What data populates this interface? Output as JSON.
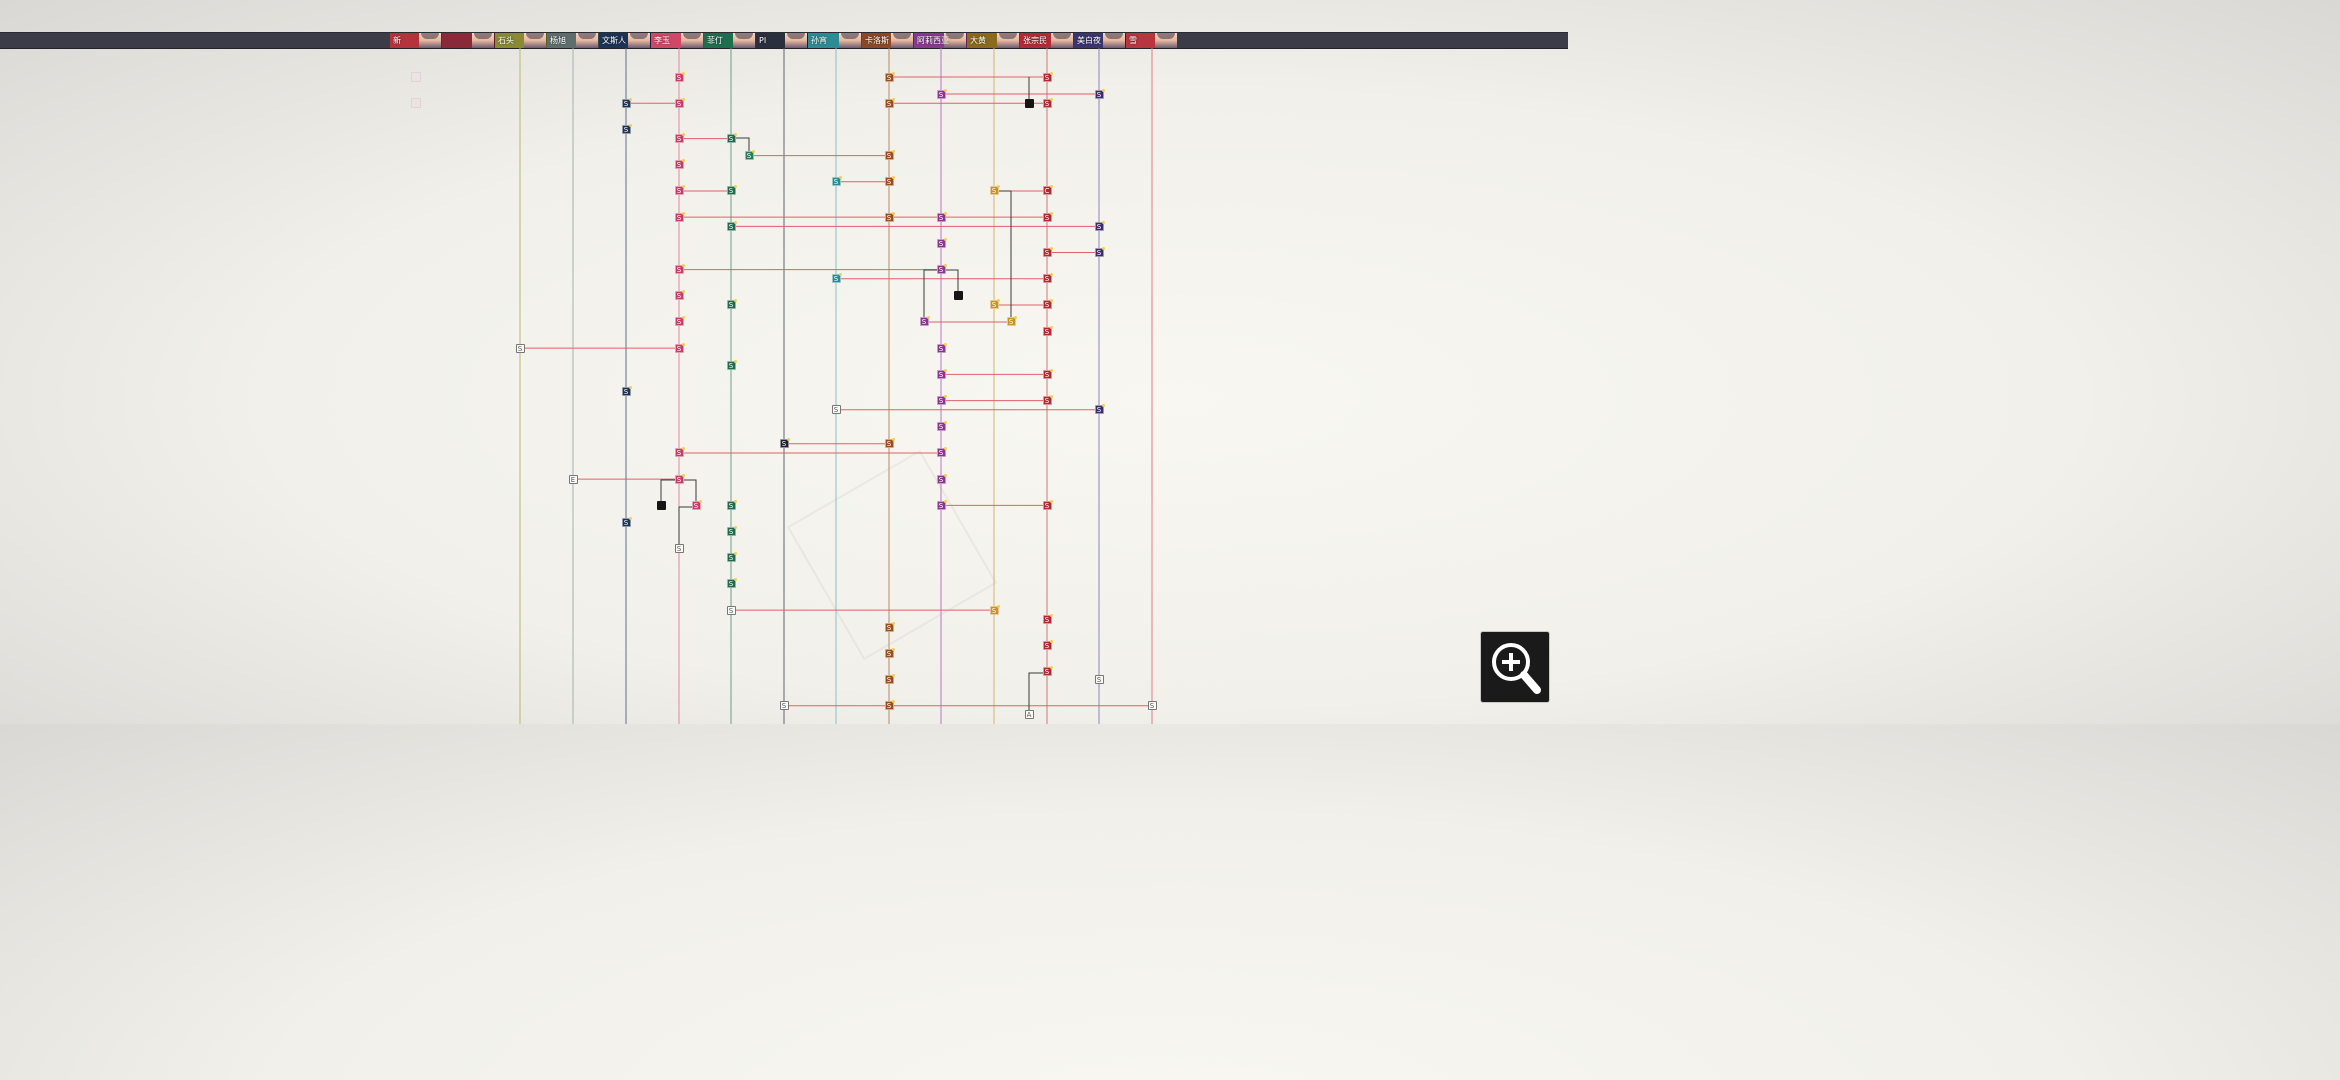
{
  "app": {
    "zoom_button": "zoom-in-icon"
  },
  "tabs": [
    {
      "id": "c0",
      "label": "新",
      "color": "#b4343e"
    },
    {
      "id": "c1",
      "label": "",
      "color": "#8a2a38"
    },
    {
      "id": "c2",
      "label": "石头",
      "color": "#8a8a34"
    },
    {
      "id": "c3",
      "label": "杨旭",
      "color": "#5f6e6c"
    },
    {
      "id": "c4",
      "label": "文斯人",
      "color": "#1c3456"
    },
    {
      "id": "c5",
      "label": "李玉",
      "color": "#d04868"
    },
    {
      "id": "c6",
      "label": "菲仃",
      "color": "#1f6e4e"
    },
    {
      "id": "c7",
      "label": "PI",
      "color": "#2a2f3e"
    },
    {
      "id": "c8",
      "label": "孙宵",
      "color": "#2d8b95"
    },
    {
      "id": "c9",
      "label": "卡洛斯",
      "color": "#8a4a2a"
    },
    {
      "id": "c10",
      "label": "阿莉西亚",
      "color": "#8a3a8e"
    },
    {
      "id": "c11",
      "label": "大黄",
      "color": "#8a6a1e"
    },
    {
      "id": "c12",
      "label": "张宗民",
      "color": "#b42a38"
    },
    {
      "id": "c13",
      "label": "美白夜",
      "color": "#3c3570"
    },
    {
      "id": "c14",
      "label": "雪",
      "color": "#b8343e"
    }
  ],
  "columns": [
    {
      "id": "c2",
      "color": "#b8b870"
    },
    {
      "id": "c3",
      "color": "#a2b2b0"
    },
    {
      "id": "c4",
      "color": "#5c6f8a"
    },
    {
      "id": "c5",
      "color": "#e2889c"
    },
    {
      "id": "c6",
      "color": "#6e9e88"
    },
    {
      "id": "c7",
      "color": "#5e6472"
    },
    {
      "id": "c8",
      "color": "#8cc0c4"
    },
    {
      "id": "c9",
      "color": "#b88a64"
    },
    {
      "id": "c10",
      "color": "#b878bc"
    },
    {
      "id": "c11",
      "color": "#d4b46e"
    },
    {
      "id": "c12",
      "color": "#d07680"
    },
    {
      "id": "c13",
      "color": "#8c88b4"
    },
    {
      "id": "c14",
      "color": "#e27c84"
    }
  ],
  "node_colors": {
    "c4": "#1d3552",
    "c5": "#c83c6a",
    "c6": "#1f6b4e",
    "c7": "#1c2230",
    "c8": "#2c8a95",
    "c9": "#9a4e1c",
    "c10": "#8c3490",
    "c11": "#c89420",
    "c12": "#b02a34",
    "c13": "#3a2e6e"
  },
  "nodes": [
    {
      "col": "c5",
      "step": 0,
      "label": "S"
    },
    {
      "col": "c9",
      "step": 0,
      "label": "S"
    },
    {
      "col": "c12",
      "step": 0,
      "label": "S"
    },
    {
      "col": "c10",
      "step": 0.65,
      "label": "S"
    },
    {
      "col": "c13",
      "step": 0.65,
      "label": "S"
    },
    {
      "col": "c4",
      "step": 1,
      "label": "S"
    },
    {
      "col": "c5",
      "step": 1,
      "label": "S"
    },
    {
      "col": "c9",
      "step": 1,
      "label": "S"
    },
    {
      "col": "x1029",
      "step": 1,
      "label": "",
      "kind": "black"
    },
    {
      "col": "c12",
      "step": 1,
      "label": "S"
    },
    {
      "col": "c4",
      "step": 2,
      "label": "S"
    },
    {
      "col": "c5",
      "step": 2.35,
      "label": "S"
    },
    {
      "col": "c6",
      "step": 2.35,
      "label": "S"
    },
    {
      "col": "x748",
      "step": 3,
      "label": "S",
      "color": "#2a7a5e"
    },
    {
      "col": "c9",
      "step": 3,
      "label": "S"
    },
    {
      "col": "c5",
      "step": 3.35,
      "label": "S"
    },
    {
      "col": "c8",
      "step": 4,
      "label": "S"
    },
    {
      "col": "c9",
      "step": 4,
      "label": "S"
    },
    {
      "col": "c5",
      "step": 4.35,
      "label": "S"
    },
    {
      "col": "c6",
      "step": 4.35,
      "label": "S"
    },
    {
      "col": "c11",
      "step": 4.35,
      "label": "S"
    },
    {
      "col": "c12",
      "step": 4.35,
      "label": "C"
    },
    {
      "col": "c5",
      "step": 5.35,
      "label": "S"
    },
    {
      "col": "c9",
      "step": 5.35,
      "label": "S"
    },
    {
      "col": "c10",
      "step": 5.35,
      "label": "S"
    },
    {
      "col": "c12",
      "step": 5.35,
      "label": "S"
    },
    {
      "col": "c6",
      "step": 5.7,
      "label": "S"
    },
    {
      "col": "c13",
      "step": 5.7,
      "label": "S"
    },
    {
      "col": "c10",
      "step": 6.35,
      "label": "S"
    },
    {
      "col": "c12",
      "step": 6.7,
      "label": "S"
    },
    {
      "col": "c13",
      "step": 6.7,
      "label": "S"
    },
    {
      "col": "c5",
      "step": 7.35,
      "label": "S"
    },
    {
      "col": "c10",
      "step": 7.35,
      "label": "S"
    },
    {
      "col": "c8",
      "step": 7.7,
      "label": "S"
    },
    {
      "col": "c12",
      "step": 7.7,
      "label": "S"
    },
    {
      "col": "x958",
      "step": 8.35,
      "label": "",
      "kind": "black"
    },
    {
      "col": "c5",
      "step": 8.35,
      "label": "S"
    },
    {
      "col": "c6",
      "step": 8.7,
      "label": "S"
    },
    {
      "col": "c11",
      "step": 8.7,
      "label": "S"
    },
    {
      "col": "c12",
      "step": 8.7,
      "label": "S"
    },
    {
      "col": "x924",
      "step": 9.35,
      "label": "S",
      "color": "#8c3490"
    },
    {
      "col": "x1011",
      "step": 9.35,
      "label": "S",
      "color": "#c89420"
    },
    {
      "col": "c5",
      "step": 9.35,
      "label": "S"
    },
    {
      "col": "c12",
      "step": 9.7,
      "label": "S"
    },
    {
      "col": "c2",
      "step": 10.35,
      "label": "S",
      "kind": "white"
    },
    {
      "col": "c5",
      "step": 10.35,
      "label": "S"
    },
    {
      "col": "c10",
      "step": 10.35,
      "label": "S"
    },
    {
      "col": "c6",
      "step": 11,
      "label": "S"
    },
    {
      "col": "c10",
      "step": 11.35,
      "label": "S"
    },
    {
      "col": "c12",
      "step": 11.35,
      "label": "S"
    },
    {
      "col": "c4",
      "step": 12,
      "label": "S"
    },
    {
      "col": "c10",
      "step": 12.35,
      "label": "S"
    },
    {
      "col": "c12",
      "step": 12.35,
      "label": "S"
    },
    {
      "col": "c8",
      "step": 12.7,
      "label": "S",
      "kind": "white"
    },
    {
      "col": "c13",
      "step": 12.7,
      "label": "S"
    },
    {
      "col": "c10",
      "step": 13.35,
      "label": "S"
    },
    {
      "col": "c7",
      "step": 14,
      "label": "S"
    },
    {
      "col": "c9",
      "step": 14,
      "label": "S"
    },
    {
      "col": "c5",
      "step": 14.35,
      "label": "S"
    },
    {
      "col": "c10",
      "step": 14.35,
      "label": "S"
    },
    {
      "col": "c3",
      "step": 15.35,
      "label": "E",
      "kind": "white"
    },
    {
      "col": "c5",
      "step": 15.35,
      "label": "S"
    },
    {
      "col": "c10",
      "step": 15.35,
      "label": "S"
    },
    {
      "col": "x661",
      "step": 16.35,
      "label": "",
      "kind": "black"
    },
    {
      "col": "x696",
      "step": 16.35,
      "label": "S",
      "color": "#c83c6a"
    },
    {
      "col": "c6",
      "step": 16.35,
      "label": "S"
    },
    {
      "col": "c10",
      "step": 16.35,
      "label": "S"
    },
    {
      "col": "c12",
      "step": 16.35,
      "label": "S"
    },
    {
      "col": "c4",
      "step": 17,
      "label": "S"
    },
    {
      "col": "c6",
      "step": 17.35,
      "label": "S"
    },
    {
      "col": "c5",
      "step": 18,
      "label": "S",
      "kind": "white"
    },
    {
      "col": "c6",
      "step": 18.35,
      "label": "S"
    },
    {
      "col": "c6",
      "step": 19.35,
      "label": "S"
    },
    {
      "col": "c6",
      "step": 20.35,
      "label": "S",
      "kind": "white"
    },
    {
      "col": "c11",
      "step": 20.35,
      "label": "S"
    },
    {
      "col": "c12",
      "step": 20.7,
      "label": "S"
    },
    {
      "col": "c9",
      "step": 21,
      "label": "S"
    },
    {
      "col": "c12",
      "step": 21.7,
      "label": "S"
    },
    {
      "col": "c9",
      "step": 22,
      "label": "S"
    },
    {
      "col": "c12",
      "step": 22.7,
      "label": "S"
    },
    {
      "col": "c9",
      "step": 23,
      "label": "S"
    },
    {
      "col": "c13",
      "step": 23,
      "label": "S",
      "kind": "white"
    },
    {
      "col": "c7",
      "step": 24,
      "label": "S",
      "kind": "white"
    },
    {
      "col": "c9",
      "step": 24,
      "label": "S"
    },
    {
      "col": "c14",
      "step": 24,
      "label": "S",
      "kind": "white"
    },
    {
      "col": "x1029",
      "step": 24.35,
      "label": "A",
      "kind": "white"
    }
  ],
  "links": [
    {
      "from": [
        "c9",
        0
      ],
      "to": [
        "c12",
        0
      ]
    },
    {
      "from": [
        "c10",
        0.65
      ],
      "to": [
        "c13",
        0.65
      ]
    },
    {
      "from": [
        "c4",
        1
      ],
      "to": [
        "c5",
        1
      ]
    },
    {
      "from": [
        "c9",
        1
      ],
      "to": [
        "c12",
        1
      ]
    },
    {
      "from": [
        "c5",
        2.35
      ],
      "to": [
        "c6",
        2.35
      ]
    },
    {
      "from": [
        "x748",
        3
      ],
      "to": [
        "c9",
        3
      ]
    },
    {
      "from": [
        "c8",
        4
      ],
      "to": [
        "c9",
        4
      ]
    },
    {
      "from": [
        "c5",
        4.35
      ],
      "to": [
        "c6",
        4.35
      ]
    },
    {
      "from": [
        "c11",
        4.35
      ],
      "to": [
        "c12",
        4.35
      ]
    },
    {
      "from": [
        "c5",
        5.35
      ],
      "to": [
        "c12",
        5.35
      ]
    },
    {
      "from": [
        "c6",
        5.7
      ],
      "to": [
        "c13",
        5.7
      ]
    },
    {
      "from": [
        "c12",
        6.7
      ],
      "to": [
        "c13",
        6.7
      ]
    },
    {
      "from": [
        "c5",
        7.35
      ],
      "to": [
        "c10",
        7.35
      ]
    },
    {
      "from": [
        "c8",
        7.7
      ],
      "to": [
        "c12",
        7.7
      ]
    },
    {
      "from": [
        "c11",
        8.7
      ],
      "to": [
        "c12",
        8.7
      ]
    },
    {
      "from": [
        "x924",
        9.35
      ],
      "to": [
        "x1011",
        9.35
      ]
    },
    {
      "from": [
        "c2",
        10.35
      ],
      "to": [
        "c5",
        10.35
      ]
    },
    {
      "from": [
        "c10",
        11.35
      ],
      "to": [
        "c12",
        11.35
      ]
    },
    {
      "from": [
        "c10",
        12.35
      ],
      "to": [
        "c12",
        12.35
      ]
    },
    {
      "from": [
        "c8",
        12.7
      ],
      "to": [
        "c13",
        12.7
      ]
    },
    {
      "from": [
        "c7",
        14
      ],
      "to": [
        "c9",
        14
      ]
    },
    {
      "from": [
        "c5",
        14.35
      ],
      "to": [
        "c10",
        14.35
      ]
    },
    {
      "from": [
        "c3",
        15.35
      ],
      "to": [
        "c5",
        15.35
      ]
    },
    {
      "from": [
        "c10",
        16.35
      ],
      "to": [
        "c12",
        16.35
      ]
    },
    {
      "from": [
        "c6",
        20.35
      ],
      "to": [
        "c11",
        20.35
      ]
    },
    {
      "from": [
        "c7",
        24
      ],
      "to": [
        "c14",
        24
      ]
    }
  ],
  "ghost_squares": 2
}
